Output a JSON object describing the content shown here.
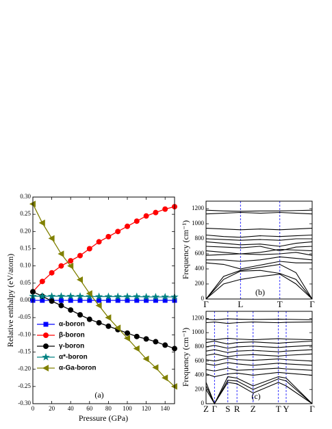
{
  "chart_data": [
    {
      "type": "line",
      "xlabel": "Pressure (GPa)",
      "ylabel": "Relative enthalpy (eV/atom)",
      "annotation": "(a)",
      "x": [
        0,
        10,
        20,
        30,
        40,
        50,
        60,
        70,
        80,
        90,
        100,
        110,
        120,
        130,
        140,
        150
      ],
      "xlim": [
        0,
        150
      ],
      "xticks": [
        0,
        20,
        40,
        60,
        80,
        100,
        120,
        140
      ],
      "ylim": [
        -0.3,
        0.3
      ],
      "yticks": [
        {
          "value": 0.3,
          "label": "0.30"
        },
        {
          "value": 0.25,
          "label": "0.25"
        },
        {
          "value": 0.2,
          "label": "0.20"
        },
        {
          "value": 0.15,
          "label": "0.15"
        },
        {
          "value": 0.1,
          "label": "0.10"
        },
        {
          "value": 0.05,
          "label": "0.05"
        },
        {
          "value": 0,
          "label": "0.00"
        },
        {
          "value": -0.05,
          "label": "-0.05"
        },
        {
          "value": -0.1,
          "label": "-0.10"
        },
        {
          "value": -0.15,
          "label": "-0.15"
        },
        {
          "value": -0.2,
          "label": "-0.20"
        },
        {
          "value": -0.25,
          "label": "-0.25"
        },
        {
          "value": -0.3,
          "label": "-0.30"
        }
      ],
      "legend": "lower left",
      "series": [
        {
          "name": "α-boron",
          "color": "#0000ff",
          "marker": "square",
          "values": [
            0,
            0,
            0,
            0,
            0,
            0,
            0,
            0,
            0,
            0,
            0,
            0,
            0,
            0,
            0,
            0
          ]
        },
        {
          "name": "β-boron",
          "color": "#ff0000",
          "marker": "circle",
          "values": [
            0.025,
            0.055,
            0.08,
            0.1,
            0.115,
            0.13,
            0.15,
            0.17,
            0.185,
            0.2,
            0.215,
            0.23,
            0.245,
            0.255,
            0.265,
            0.272
          ]
        },
        {
          "name": "γ-boron",
          "color": "#000000",
          "marker": "circle",
          "values": [
            0.025,
            0.012,
            -0.002,
            -0.015,
            -0.028,
            -0.042,
            -0.055,
            -0.065,
            -0.075,
            -0.085,
            -0.095,
            -0.105,
            -0.112,
            -0.12,
            -0.13,
            -0.14
          ]
        },
        {
          "name": "α*-boron",
          "color": "#008080",
          "marker": "star",
          "values": [
            0.012,
            0.012,
            0.012,
            0.012,
            0.012,
            0.012,
            0.011,
            0.011,
            0.011,
            0.011,
            0.011,
            0.011,
            0.01,
            0.01,
            0.01,
            0.01
          ]
        },
        {
          "name": "α-Ga-boron",
          "color": "#808000",
          "marker": "triangle-left",
          "values": [
            0.28,
            0.225,
            0.18,
            0.135,
            0.1,
            0.06,
            0.02,
            -0.015,
            -0.05,
            -0.08,
            -0.11,
            -0.14,
            -0.17,
            -0.195,
            -0.225,
            -0.25
          ]
        }
      ]
    },
    {
      "type": "line",
      "ylabel": "Frequency (cm⁻¹)",
      "annotation": "(b)",
      "x": [
        0,
        0.25,
        0.49,
        0.77,
        1.05,
        1.28,
        1.51
      ],
      "xlim": [
        0,
        1.51
      ],
      "xticks": [
        {
          "value": 0,
          "label": "Γ"
        },
        {
          "value": 0.49,
          "label": "L"
        },
        {
          "value": 1.05,
          "label": "T"
        },
        {
          "value": 1.51,
          "label": "Γ"
        }
      ],
      "ylim": [
        0,
        1300
      ],
      "yticks": [
        0,
        200,
        400,
        600,
        800,
        1000,
        1200
      ],
      "series": [
        {
          "color": "#000000",
          "values": [
            0,
            200,
            260,
            300,
            330,
            200,
            0
          ]
        },
        {
          "color": "#000000",
          "values": [
            0,
            260,
            370,
            380,
            340,
            260,
            0
          ]
        },
        {
          "color": "#000000",
          "values": [
            0,
            300,
            380,
            420,
            460,
            350,
            0
          ]
        },
        {
          "color": "#000000",
          "values": [
            480,
            460,
            400,
            450,
            500,
            480,
            480
          ]
        },
        {
          "color": "#000000",
          "values": [
            520,
            520,
            500,
            520,
            560,
            540,
            520
          ]
        },
        {
          "color": "#000000",
          "values": [
            580,
            590,
            600,
            590,
            600,
            620,
            580
          ]
        },
        {
          "color": "#000000",
          "values": [
            640,
            620,
            600,
            620,
            660,
            650,
            640
          ]
        },
        {
          "color": "#000000",
          "values": [
            700,
            690,
            680,
            700,
            640,
            690,
            700
          ]
        },
        {
          "color": "#000000",
          "values": [
            760,
            740,
            720,
            730,
            700,
            740,
            760
          ]
        },
        {
          "color": "#000000",
          "values": [
            800,
            790,
            780,
            790,
            780,
            800,
            800
          ]
        },
        {
          "color": "#000000",
          "values": [
            850,
            830,
            820,
            840,
            830,
            840,
            850
          ]
        },
        {
          "color": "#000000",
          "values": [
            940,
            930,
            920,
            930,
            920,
            930,
            940
          ]
        },
        {
          "color": "#000000",
          "values": [
            1130,
            1140,
            1150,
            1140,
            1150,
            1140,
            1130
          ]
        },
        {
          "color": "#000000",
          "values": [
            1180,
            1170,
            1165,
            1170,
            1170,
            1175,
            1180
          ]
        }
      ]
    },
    {
      "type": "line",
      "ylabel": "Frequency (cm⁻¹)",
      "annotation": "(c)",
      "x": [
        0,
        0.12,
        0.31,
        0.44,
        0.67,
        1.03,
        1.14,
        1.51
      ],
      "xlim": [
        0,
        1.51
      ],
      "xticks": [
        {
          "value": 0,
          "label": "Z"
        },
        {
          "value": 0.12,
          "label": "Γ"
        },
        {
          "value": 0.31,
          "label": "S"
        },
        {
          "value": 0.44,
          "label": "R"
        },
        {
          "value": 0.67,
          "label": "Z"
        },
        {
          "value": 1.03,
          "label": "T"
        },
        {
          "value": 1.14,
          "label": "Y"
        },
        {
          "value": 1.51,
          "label": "Γ"
        }
      ],
      "ylim": [
        0,
        1300
      ],
      "yticks": [
        0,
        200,
        400,
        600,
        800,
        1000,
        1200
      ],
      "series": [
        {
          "color": "#000000",
          "values": [
            200,
            0,
            300,
            280,
            150,
            300,
            250,
            0
          ]
        },
        {
          "color": "#000000",
          "values": [
            250,
            0,
            330,
            320,
            200,
            350,
            320,
            0
          ]
        },
        {
          "color": "#000000",
          "values": [
            300,
            0,
            380,
            360,
            250,
            380,
            360,
            0
          ]
        },
        {
          "color": "#000000",
          "values": [
            420,
            380,
            420,
            430,
            400,
            440,
            430,
            400
          ]
        },
        {
          "color": "#000000",
          "values": [
            480,
            460,
            500,
            470,
            480,
            500,
            490,
            470
          ]
        },
        {
          "color": "#000000",
          "values": [
            560,
            540,
            580,
            560,
            540,
            570,
            560,
            540
          ]
        },
        {
          "color": "#000000",
          "values": [
            620,
            600,
            640,
            620,
            610,
            630,
            620,
            600
          ]
        },
        {
          "color": "#000000",
          "values": [
            680,
            700,
            660,
            680,
            690,
            670,
            680,
            700
          ]
        },
        {
          "color": "#000000",
          "values": [
            740,
            760,
            720,
            740,
            750,
            730,
            740,
            760
          ]
        },
        {
          "color": "#000000",
          "values": [
            800,
            820,
            780,
            800,
            810,
            790,
            800,
            820
          ]
        },
        {
          "color": "#000000",
          "values": [
            860,
            880,
            840,
            860,
            870,
            850,
            860,
            880
          ]
        },
        {
          "color": "#000000",
          "values": [
            910,
            900,
            920,
            910,
            900,
            915,
            910,
            900
          ]
        },
        {
          "color": "#000000",
          "values": [
            1140,
            1150,
            1130,
            1140,
            1150,
            1140,
            1145,
            1150
          ]
        },
        {
          "color": "#000000",
          "values": [
            1190,
            1180,
            1195,
            1190,
            1185,
            1190,
            1188,
            1180
          ]
        }
      ]
    }
  ]
}
